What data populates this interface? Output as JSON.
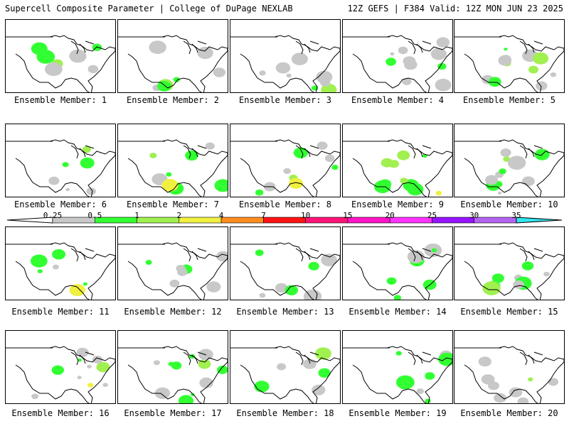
{
  "header": {
    "title_left": "Supercell Composite Parameter | College of DuPage NEXLAB",
    "title_right": "12Z GEFS | F384 Valid: 12Z MON JUN 23 2025"
  },
  "legend": {
    "ticks": [
      "0.25",
      "0.5",
      "1",
      "2",
      "4",
      "7",
      "10",
      "15",
      "20",
      "25",
      "30",
      "35"
    ],
    "colors": [
      "#c8c8c8",
      "#32ff32",
      "#a0f050",
      "#f0f040",
      "#ff8c1e",
      "#ff1414",
      "#ff1478",
      "#ff14c8",
      "#ff32ff",
      "#9614ff",
      "#b464f0",
      "#32e6f0"
    ]
  },
  "colors": {
    "grid": "#000000",
    "map_line": "#000000",
    "background": "#ffffff"
  },
  "members": [
    {
      "label": "Ensemble Member: 1"
    },
    {
      "label": "Ensemble Member: 2"
    },
    {
      "label": "Ensemble Member: 3"
    },
    {
      "label": "Ensemble Member: 4"
    },
    {
      "label": "Ensemble Member: 5"
    },
    {
      "label": "Ensemble Member: 6"
    },
    {
      "label": "Ensemble Member: 7"
    },
    {
      "label": "Ensemble Member: 8"
    },
    {
      "label": "Ensemble Member: 9"
    },
    {
      "label": "Ensemble Member: 10"
    },
    {
      "label": "Ensemble Member: 11"
    },
    {
      "label": "Ensemble Member: 12"
    },
    {
      "label": "Ensemble Member: 13"
    },
    {
      "label": "Ensemble Member: 14"
    },
    {
      "label": "Ensemble Member: 15"
    },
    {
      "label": "Ensemble Member: 16"
    },
    {
      "label": "Ensemble Member: 17"
    },
    {
      "label": "Ensemble Member: 18"
    },
    {
      "label": "Ensemble Member: 19"
    },
    {
      "label": "Ensemble Member: 20"
    }
  ]
}
